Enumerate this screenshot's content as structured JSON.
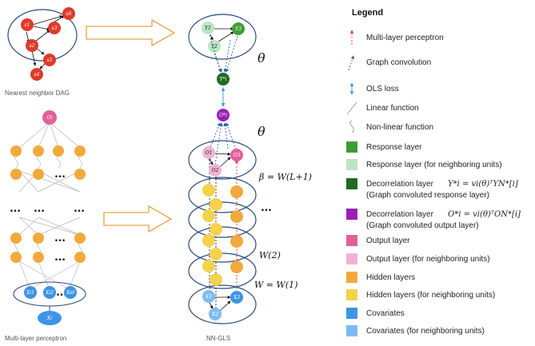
{
  "captions": {
    "dag": "Nearest neighbor DAG",
    "mlp": "Multi-layer perceptron",
    "nngls": "NN-GLS"
  },
  "symbols": {
    "theta": "θ",
    "beta_eq": "β = W(L+1)",
    "w2": "W(2)",
    "w1": "W = W(1)",
    "dots": "…"
  },
  "dag_nodes": [
    "s1",
    "s2",
    "s3",
    "s4",
    "s5",
    "s6"
  ],
  "mlp_nodes": {
    "output": "Oi",
    "covariates_group": "Xi",
    "covariates": [
      "Xi1",
      "Xi2",
      "Xid"
    ]
  },
  "nngls_nodes": {
    "response": [
      "Y1",
      "Y2",
      "Y3"
    ],
    "decor_response": "Y*i",
    "decor_output": "O*i",
    "output": [
      "O1",
      "O2",
      "O3"
    ],
    "covariates": [
      "X1",
      "X2",
      "X3"
    ]
  },
  "legend": {
    "title": "Legend",
    "items": [
      {
        "kind": "red-arrow",
        "label": "Multi-layer perceptron"
      },
      {
        "kind": "blue-arrow",
        "label": "Graph convolution"
      },
      {
        "kind": "double-arrow",
        "label": "OLS loss"
      },
      {
        "kind": "line",
        "label": "Linear function"
      },
      {
        "kind": "curve",
        "label": "Non-linear function"
      },
      {
        "kind": "swatch",
        "color": "#3d9e35",
        "label": "Response layer"
      },
      {
        "kind": "swatch",
        "color": "#b9e6c2",
        "label": "Response layer (for neighboring units)"
      },
      {
        "kind": "swatch",
        "color": "#1f6b1f",
        "label": "Decorrelation layer",
        "math": "Y*i = vi(θ)ᵀYN*[i]",
        "label2": "(Graph convoluted response layer)"
      },
      {
        "kind": "swatch",
        "color": "#9a20b5",
        "label": "Decorrelation layer",
        "math": "O*i = vi(θ)ᵀON*[i]",
        "label2": "(Graph convoluted output layer)"
      },
      {
        "kind": "swatch",
        "color": "#e2609a",
        "label": "Output layer"
      },
      {
        "kind": "swatch",
        "color": "#f2b3d3",
        "label": "Output layer (for neighboring units)"
      },
      {
        "kind": "swatch",
        "color": "#f0aa3c",
        "label": "Hidden layers"
      },
      {
        "kind": "swatch",
        "color": "#f3d24c",
        "label": "Hidden layers (for neighboring units)"
      },
      {
        "kind": "swatch",
        "color": "#3d94e6",
        "label": "Covariates"
      },
      {
        "kind": "swatch",
        "color": "#7cbcf2",
        "label": "Covariates (for neighboring units)"
      }
    ]
  },
  "colors": {
    "red": "#e03a2a",
    "pink": "#e2609a",
    "pink_light": "#f2b3d3",
    "orange": "#f0aa3c",
    "yellow": "#f3d24c",
    "blue": "#3d94e6",
    "blue_light": "#7cbcf2",
    "green": "#3d9e35",
    "green_light": "#b9e6c2",
    "green_dark": "#1f6b1f",
    "purple": "#9a20b5",
    "ellipse": "#2b4a7a",
    "arrow_orange": "#e8a24a"
  }
}
